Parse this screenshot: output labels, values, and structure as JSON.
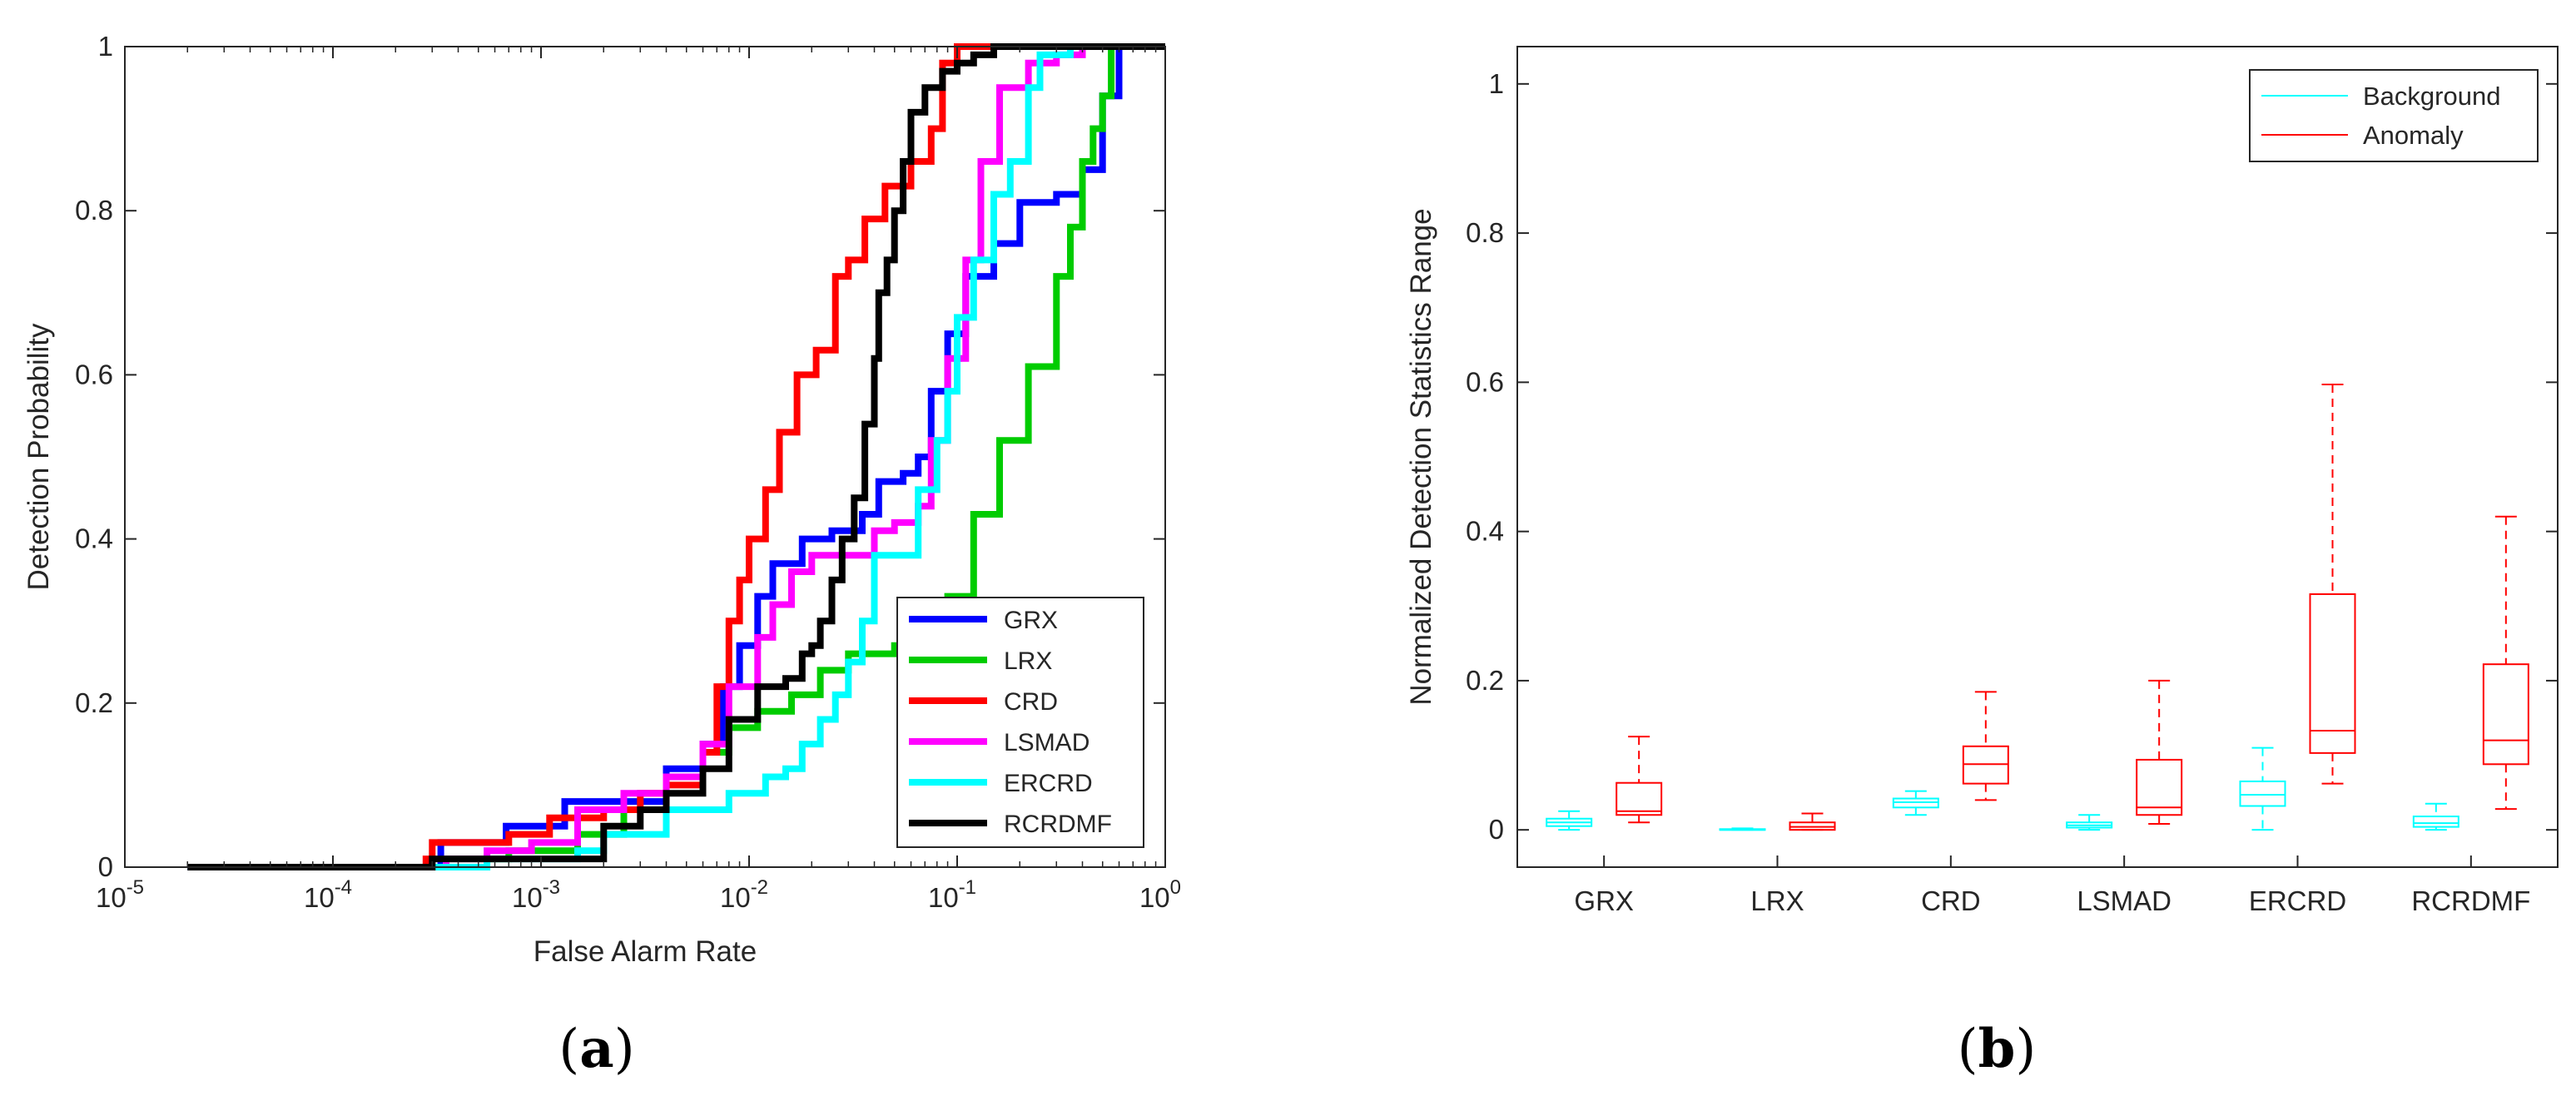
{
  "chart_data": [
    {
      "type": "line",
      "panel_label": "a",
      "xscale": "log",
      "xlabel": "False Alarm Rate",
      "ylabel": "Detection Probability",
      "xlim": [
        1e-05,
        1
      ],
      "ylim": [
        0,
        1
      ],
      "x_ticks": [
        {
          "base": "10",
          "exp": "-5"
        },
        {
          "base": "10",
          "exp": "-4"
        },
        {
          "base": "10",
          "exp": "-3"
        },
        {
          "base": "10",
          "exp": "-2"
        },
        {
          "base": "10",
          "exp": "-1"
        },
        {
          "base": "10",
          "exp": "0"
        }
      ],
      "y_ticks": [
        "0",
        "0.2",
        "0.4",
        "0.6",
        "0.8",
        "1"
      ],
      "legend_position": "bottom-right",
      "series": [
        {
          "name": "GRX",
          "color": "#0000ff",
          "points": [
            [
              2e-05,
              0
            ],
            [
              0.0003,
              0
            ],
            [
              0.00033,
              0.03
            ],
            [
              0.00062,
              0.03
            ],
            [
              0.00068,
              0.05
            ],
            [
              0.0012,
              0.05
            ],
            [
              0.0013,
              0.08
            ],
            [
              0.0025,
              0.08
            ],
            [
              0.004,
              0.12
            ],
            [
              0.006,
              0.15
            ],
            [
              0.0075,
              0.22
            ],
            [
              0.009,
              0.27
            ],
            [
              0.011,
              0.33
            ],
            [
              0.013,
              0.37
            ],
            [
              0.018,
              0.4
            ],
            [
              0.025,
              0.41
            ],
            [
              0.035,
              0.43
            ],
            [
              0.042,
              0.47
            ],
            [
              0.055,
              0.48
            ],
            [
              0.065,
              0.5
            ],
            [
              0.075,
              0.58
            ],
            [
              0.09,
              0.65
            ],
            [
              0.11,
              0.72
            ],
            [
              0.15,
              0.76
            ],
            [
              0.2,
              0.81
            ],
            [
              0.3,
              0.82
            ],
            [
              0.4,
              0.85
            ],
            [
              0.5,
              0.94
            ],
            [
              0.6,
              1.0
            ],
            [
              1,
              1.0
            ]
          ]
        },
        {
          "name": "LRX",
          "color": "#00cc00",
          "points": [
            [
              2e-05,
              0
            ],
            [
              0.0003,
              0
            ],
            [
              0.00035,
              0.01
            ],
            [
              0.0006,
              0.01
            ],
            [
              0.0007,
              0.02
            ],
            [
              0.0015,
              0.04
            ],
            [
              0.0025,
              0.07
            ],
            [
              0.004,
              0.11
            ],
            [
              0.006,
              0.14
            ],
            [
              0.008,
              0.17
            ],
            [
              0.011,
              0.19
            ],
            [
              0.016,
              0.21
            ],
            [
              0.022,
              0.24
            ],
            [
              0.03,
              0.26
            ],
            [
              0.05,
              0.27
            ],
            [
              0.07,
              0.3
            ],
            [
              0.09,
              0.33
            ],
            [
              0.12,
              0.43
            ],
            [
              0.16,
              0.52
            ],
            [
              0.22,
              0.61
            ],
            [
              0.3,
              0.72
            ],
            [
              0.35,
              0.78
            ],
            [
              0.4,
              0.86
            ],
            [
              0.45,
              0.9
            ],
            [
              0.5,
              0.94
            ],
            [
              0.55,
              1.0
            ],
            [
              1,
              1.0
            ]
          ]
        },
        {
          "name": "CRD",
          "color": "#ff0000",
          "points": [
            [
              2e-05,
              0
            ],
            [
              0.00025,
              0
            ],
            [
              0.00028,
              0.01
            ],
            [
              0.0003,
              0.03
            ],
            [
              0.0006,
              0.03
            ],
            [
              0.0007,
              0.04
            ],
            [
              0.001,
              0.04
            ],
            [
              0.0011,
              0.06
            ],
            [
              0.002,
              0.07
            ],
            [
              0.003,
              0.09
            ],
            [
              0.004,
              0.1
            ],
            [
              0.006,
              0.14
            ],
            [
              0.007,
              0.22
            ],
            [
              0.008,
              0.3
            ],
            [
              0.009,
              0.35
            ],
            [
              0.01,
              0.4
            ],
            [
              0.012,
              0.46
            ],
            [
              0.014,
              0.53
            ],
            [
              0.017,
              0.6
            ],
            [
              0.021,
              0.63
            ],
            [
              0.026,
              0.72
            ],
            [
              0.03,
              0.74
            ],
            [
              0.036,
              0.79
            ],
            [
              0.045,
              0.83
            ],
            [
              0.06,
              0.86
            ],
            [
              0.075,
              0.9
            ],
            [
              0.085,
              0.98
            ],
            [
              0.1,
              1.0
            ],
            [
              1,
              1.0
            ]
          ]
        },
        {
          "name": "LSMAD",
          "color": "#ff00ff",
          "points": [
            [
              2e-05,
              0
            ],
            [
              0.0003,
              0
            ],
            [
              0.00035,
              0.01
            ],
            [
              0.00055,
              0.02
            ],
            [
              0.0009,
              0.03
            ],
            [
              0.0015,
              0.07
            ],
            [
              0.0025,
              0.09
            ],
            [
              0.004,
              0.11
            ],
            [
              0.006,
              0.15
            ],
            [
              0.008,
              0.22
            ],
            [
              0.011,
              0.28
            ],
            [
              0.013,
              0.32
            ],
            [
              0.016,
              0.36
            ],
            [
              0.02,
              0.38
            ],
            [
              0.03,
              0.38
            ],
            [
              0.04,
              0.41
            ],
            [
              0.05,
              0.42
            ],
            [
              0.065,
              0.44
            ],
            [
              0.075,
              0.52
            ],
            [
              0.09,
              0.62
            ],
            [
              0.11,
              0.74
            ],
            [
              0.13,
              0.86
            ],
            [
              0.16,
              0.95
            ],
            [
              0.22,
              0.98
            ],
            [
              0.3,
              0.99
            ],
            [
              0.4,
              1.0
            ],
            [
              1,
              1.0
            ]
          ]
        },
        {
          "name": "ERCRD",
          "color": "#00ffff",
          "points": [
            [
              2e-05,
              0
            ],
            [
              0.0005,
              0
            ],
            [
              0.00055,
              0.01
            ],
            [
              0.0015,
              0.02
            ],
            [
              0.002,
              0.04
            ],
            [
              0.003,
              0.04
            ],
            [
              0.004,
              0.07
            ],
            [
              0.007,
              0.07
            ],
            [
              0.008,
              0.09
            ],
            [
              0.012,
              0.11
            ],
            [
              0.015,
              0.12
            ],
            [
              0.018,
              0.15
            ],
            [
              0.022,
              0.18
            ],
            [
              0.026,
              0.21
            ],
            [
              0.03,
              0.25
            ],
            [
              0.035,
              0.3
            ],
            [
              0.04,
              0.38
            ],
            [
              0.06,
              0.38
            ],
            [
              0.065,
              0.46
            ],
            [
              0.08,
              0.52
            ],
            [
              0.09,
              0.58
            ],
            [
              0.1,
              0.67
            ],
            [
              0.12,
              0.74
            ],
            [
              0.15,
              0.82
            ],
            [
              0.18,
              0.86
            ],
            [
              0.22,
              0.95
            ],
            [
              0.25,
              0.99
            ],
            [
              0.35,
              1.0
            ],
            [
              1,
              1.0
            ]
          ]
        },
        {
          "name": "RCRDMF",
          "color": "#000000",
          "points": [
            [
              2e-05,
              0
            ],
            [
              0.00028,
              0
            ],
            [
              0.0003,
              0.01
            ],
            [
              0.0015,
              0.01
            ],
            [
              0.002,
              0.05
            ],
            [
              0.003,
              0.07
            ],
            [
              0.004,
              0.09
            ],
            [
              0.006,
              0.12
            ],
            [
              0.008,
              0.18
            ],
            [
              0.011,
              0.22
            ],
            [
              0.015,
              0.23
            ],
            [
              0.018,
              0.26
            ],
            [
              0.02,
              0.27
            ],
            [
              0.022,
              0.3
            ],
            [
              0.025,
              0.35
            ],
            [
              0.028,
              0.4
            ],
            [
              0.032,
              0.45
            ],
            [
              0.036,
              0.54
            ],
            [
              0.04,
              0.62
            ],
            [
              0.042,
              0.7
            ],
            [
              0.046,
              0.74
            ],
            [
              0.05,
              0.8
            ],
            [
              0.055,
              0.86
            ],
            [
              0.06,
              0.92
            ],
            [
              0.07,
              0.95
            ],
            [
              0.085,
              0.97
            ],
            [
              0.1,
              0.98
            ],
            [
              0.12,
              0.99
            ],
            [
              0.15,
              1.0
            ],
            [
              1,
              1.0
            ]
          ]
        }
      ]
    },
    {
      "type": "box",
      "panel_label": "b",
      "ylabel": "Normalized Detection Statistics Range",
      "ylim": [
        -0.05,
        1.05
      ],
      "y_ticks": [
        "0",
        "0.2",
        "0.4",
        "0.6",
        "0.8",
        "1"
      ],
      "categories": [
        "GRX",
        "LRX",
        "CRD",
        "LSMAD",
        "ERCRD",
        "RCRDMF"
      ],
      "legend_position": "top-right",
      "series": [
        {
          "name": "Background",
          "color": "#00ffff",
          "boxes": [
            {
              "min": 0.0,
              "q1": 0.005,
              "median": 0.01,
              "q3": 0.015,
              "max": 0.025
            },
            {
              "min": 0.0,
              "q1": 0.0,
              "median": 0.0,
              "q3": 0.001,
              "max": 0.002
            },
            {
              "min": 0.02,
              "q1": 0.03,
              "median": 0.037,
              "q3": 0.042,
              "max": 0.052
            },
            {
              "min": 0.0,
              "q1": 0.003,
              "median": 0.006,
              "q3": 0.01,
              "max": 0.02
            },
            {
              "min": 0.0,
              "q1": 0.032,
              "median": 0.047,
              "q3": 0.065,
              "max": 0.11
            },
            {
              "min": 0.0,
              "q1": 0.004,
              "median": 0.009,
              "q3": 0.018,
              "max": 0.035
            }
          ]
        },
        {
          "name": "Anomaly",
          "color": "#ff0000",
          "boxes": [
            {
              "min": 0.01,
              "q1": 0.02,
              "median": 0.025,
              "q3": 0.063,
              "max": 0.125
            },
            {
              "min": 0.0,
              "q1": 0.0,
              "median": 0.004,
              "q3": 0.01,
              "max": 0.022
            },
            {
              "min": 0.04,
              "q1": 0.062,
              "median": 0.088,
              "q3": 0.112,
              "max": 0.185
            },
            {
              "min": 0.008,
              "q1": 0.02,
              "median": 0.03,
              "q3": 0.094,
              "max": 0.2
            },
            {
              "min": 0.062,
              "q1": 0.103,
              "median": 0.133,
              "q3": 0.316,
              "max": 0.597
            },
            {
              "min": 0.028,
              "q1": 0.088,
              "median": 0.12,
              "q3": 0.222,
              "max": 0.42
            }
          ]
        }
      ]
    }
  ]
}
